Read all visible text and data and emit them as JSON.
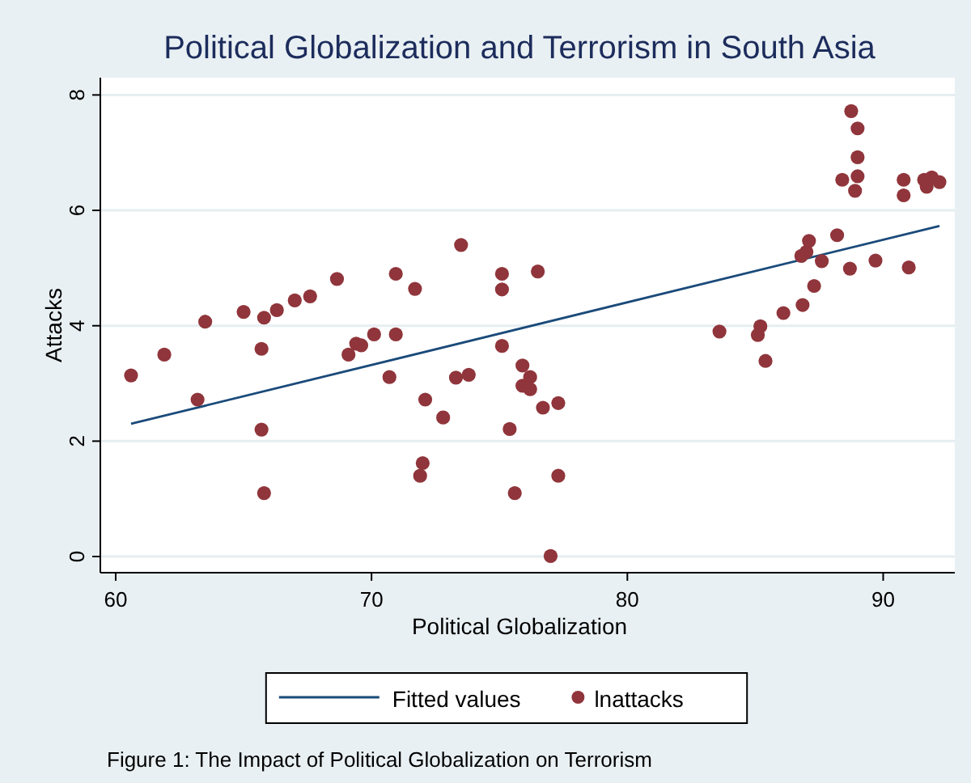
{
  "chart_data": {
    "type": "scatter",
    "title": "Political Globalization and Terrorism in South Asia",
    "xlabel": "Political Globalization",
    "ylabel": "Attacks",
    "annotations": [
      "Figure 1: The Impact of Political Globalization on Terrorism"
    ],
    "xlim": [
      59.4,
      92.8
    ],
    "xticks": [
      60,
      70,
      80,
      90
    ],
    "ylim": [
      -0.28,
      8.3
    ],
    "yticks": [
      0,
      2,
      4,
      6,
      8
    ],
    "grid": "y",
    "legend": "bottom",
    "series": [
      {
        "name": "Fitted values",
        "type": "line",
        "color": "#1a4a7a",
        "marker": "none",
        "x": [
          60.6,
          92.2
        ],
        "values": [
          2.3,
          5.73
        ]
      },
      {
        "name": "lnattacks",
        "color": "#90353b",
        "marker": "circle",
        "x": [
          60.6,
          61.9,
          63.2,
          63.5,
          65.0,
          65.8,
          65.7,
          65.7,
          65.8,
          66.3,
          67.0,
          67.6,
          68.65,
          69.1,
          69.4,
          69.6,
          70.1,
          70.7,
          70.95,
          70.95,
          71.7,
          72.1,
          72.8,
          72.0,
          71.9,
          73.3,
          73.8,
          73.5,
          75.1,
          75.1,
          75.1,
          75.4,
          75.6,
          75.9,
          75.9,
          76.2,
          76.2,
          76.5,
          76.7,
          77.0,
          77.3,
          77.3,
          83.6,
          85.1,
          85.2,
          85.4,
          86.1,
          86.85,
          87.3,
          86.8,
          87.0,
          87.1,
          87.6,
          88.2,
          88.7,
          89.7,
          91.0,
          88.75,
          89.0,
          89.0,
          89.0,
          88.9,
          88.4,
          90.8,
          90.8,
          91.6,
          91.7,
          91.9,
          92.2
        ],
        "values": [
          3.14,
          3.5,
          2.72,
          4.07,
          4.24,
          4.14,
          3.6,
          2.2,
          1.1,
          4.27,
          4.44,
          4.51,
          4.81,
          3.5,
          3.69,
          3.66,
          3.85,
          3.11,
          4.9,
          3.85,
          4.64,
          2.72,
          2.41,
          1.62,
          1.4,
          3.1,
          3.15,
          5.4,
          4.9,
          4.63,
          3.65,
          2.21,
          1.1,
          3.31,
          2.96,
          3.11,
          2.9,
          4.94,
          2.58,
          0.01,
          2.66,
          1.4,
          3.9,
          3.84,
          3.99,
          3.39,
          4.22,
          4.36,
          4.69,
          5.21,
          5.28,
          5.47,
          5.12,
          5.57,
          4.99,
          5.13,
          5.01,
          7.72,
          7.42,
          6.92,
          6.59,
          6.34,
          6.53,
          6.53,
          6.26,
          6.53,
          6.41,
          6.57,
          6.49
        ]
      }
    ]
  }
}
